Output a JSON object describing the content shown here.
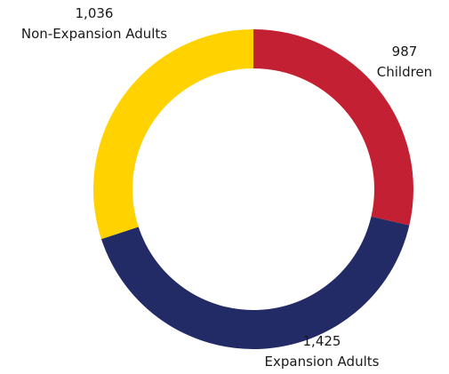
{
  "chart_data": {
    "type": "pie",
    "style": "donut",
    "title": "",
    "start": "top",
    "direction": "clockwise",
    "slices": [
      {
        "value": 987,
        "value_label": "987",
        "label": "Children",
        "color": "#C32033"
      },
      {
        "value": 1425,
        "value_label": "1,425",
        "label": "Expansion Adults",
        "color": "#222B66"
      },
      {
        "value": 1036,
        "value_label": "1,036",
        "label": "Non-Expansion Adults",
        "color": "#FFD200"
      }
    ],
    "legend": "none"
  }
}
